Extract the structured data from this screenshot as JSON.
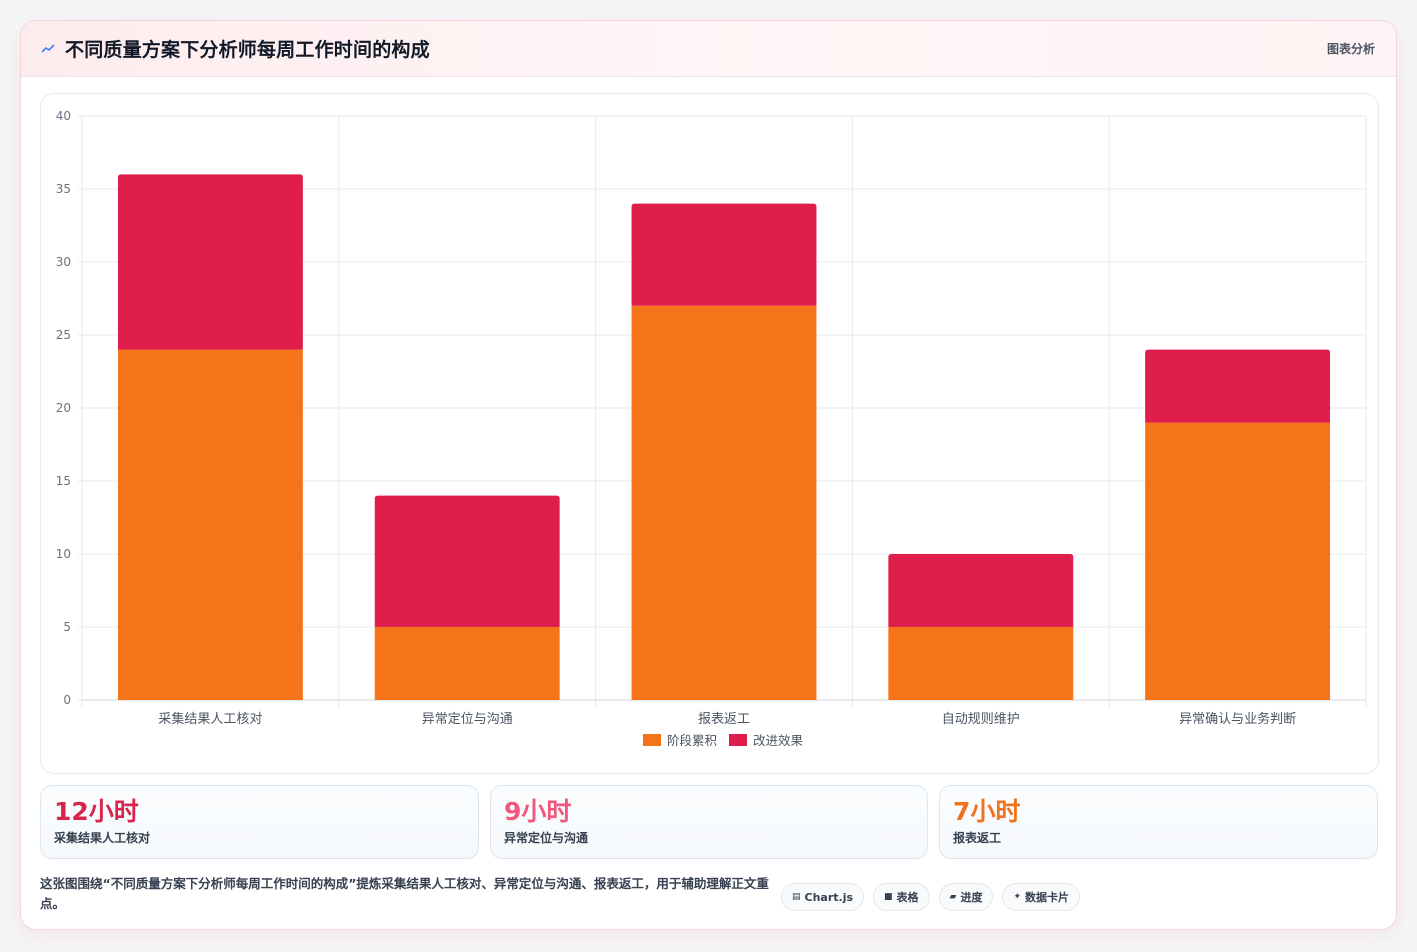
{
  "header": {
    "title": "不同质量方案下分析师每周工作时间的构成",
    "tag": "图表分析"
  },
  "chart_data": {
    "type": "bar",
    "stacked": true,
    "categories": [
      "采集结果人工核对",
      "异常定位与沟通",
      "报表返工",
      "自动规则维护",
      "异常确认与业务判断"
    ],
    "series": [
      {
        "name": "阶段累积",
        "color": "#f57419",
        "values": [
          24,
          5,
          27,
          5,
          19
        ]
      },
      {
        "name": "改进效果",
        "color": "#e01e4b",
        "values": [
          12,
          9,
          7,
          5,
          5
        ]
      }
    ],
    "ylim": [
      0,
      40
    ],
    "yticks": [
      0,
      5,
      10,
      15,
      20,
      25,
      30,
      35,
      40
    ],
    "grid": true,
    "legend": "bottom"
  },
  "stats": [
    {
      "value": "12小时",
      "label": "采集结果人工核对",
      "color": "#d9254c"
    },
    {
      "value": "9小时",
      "label": "异常定位与沟通",
      "color": "#f0577a"
    },
    {
      "value": "7小时",
      "label": "报表返工",
      "color": "#f0721c"
    }
  ],
  "footer": {
    "text": "这张图围绕“不同质量方案下分析师每周工作时间的构成”提炼采集结果人工核对、异常定位与沟通、报表返工，用于辅助理解正文重点。"
  },
  "chips": [
    {
      "icon": "chart-icon",
      "label": "Chart.js"
    },
    {
      "icon": "table-icon",
      "label": "表格"
    },
    {
      "icon": "progress-icon",
      "label": "进度"
    },
    {
      "icon": "sparkle-icon",
      "label": "数据卡片"
    }
  ],
  "colors": {
    "accent": "#e01e4b",
    "orange": "#f57419",
    "header_bg": "#fdecee"
  }
}
